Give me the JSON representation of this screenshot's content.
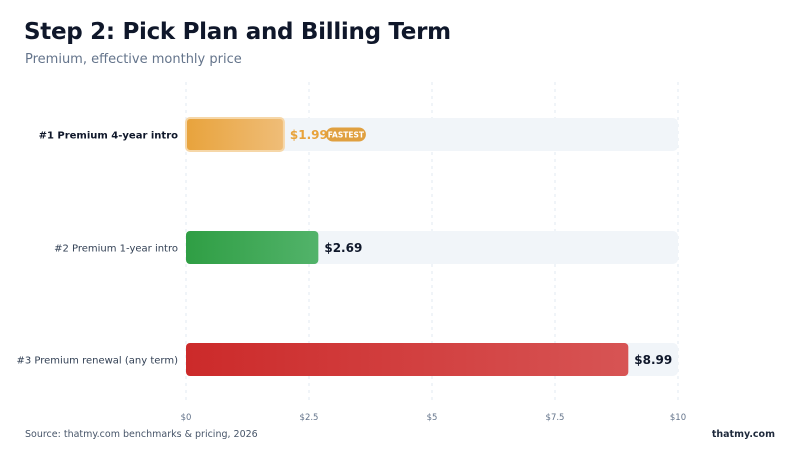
{
  "header": {
    "title": "Step 2: Pick Plan and Billing Term",
    "subtitle": "Premium, effective monthly price"
  },
  "footer": {
    "source": "Source: thatmy.com benchmarks & pricing, 2026",
    "brand": "thatmy.com"
  },
  "colors": {
    "track": "#f1f5f9",
    "grid": "#e2e8f0",
    "highlight_label": "#e8a33c",
    "badge_bg": "#e0a040",
    "value_text": "#0f172a"
  },
  "chart_data": {
    "type": "bar",
    "orientation": "horizontal",
    "title": "Step 2: Pick Plan and Billing Term",
    "subtitle": "Premium, effective monthly price",
    "categories": [
      "#1  Premium 4-year intro",
      "#2  Premium 1-year intro",
      "#3  Premium renewal (any term)"
    ],
    "values": [
      1.99,
      2.69,
      8.99
    ],
    "value_labels": [
      "$1.99",
      "$2.69",
      "$8.99"
    ],
    "bar_colors": [
      [
        "#e8a33c",
        "#efbd78"
      ],
      [
        "#2f9e44",
        "#52b36a"
      ],
      [
        "#cc2a2a",
        "#d75454"
      ]
    ],
    "badge": {
      "index": 0,
      "text": "FASTEST"
    },
    "xlim": [
      0,
      10
    ],
    "xticks": [
      0,
      2.5,
      5,
      7.5,
      10
    ],
    "xtick_labels": [
      "$0",
      "$2.5",
      "$5",
      "$7.5",
      "$10"
    ],
    "grid": true,
    "legend": "none"
  }
}
